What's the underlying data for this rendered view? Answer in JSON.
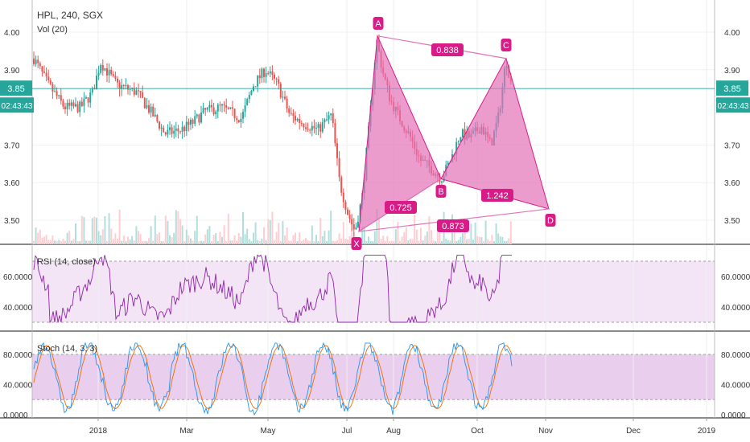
{
  "legend": {
    "symbol": "HPL, 240, SGX",
    "volume": "Vol (20)",
    "rsi": "RSI (14, close)",
    "stoch": "Stoch (14, 3, 3)"
  },
  "price_badges": {
    "price": "3.85",
    "countdown": "02:43:43"
  },
  "colors": {
    "up": "#26a69a",
    "down": "#ef5350",
    "pattern": "#d81b87",
    "pattern_fill": "#e272b8",
    "rsi_line": "#8e24aa",
    "rsi_band": "#f3e5f5",
    "stoch_band": "#e1bee7",
    "stoch_k": "#2196f3",
    "stoch_d": "#ef6c00",
    "badge": "#26a69a"
  },
  "chart_data": [
    {
      "type": "candlestick",
      "x_ticks": [
        "2018",
        "Mar",
        "May",
        "Jul",
        "Aug",
        "Oct",
        "Nov",
        "Dec",
        "2019"
      ],
      "y_ticks": [
        "4.00",
        "3.90",
        "3.70",
        "3.60",
        "3.50"
      ],
      "ylim": [
        3.43,
        4.06
      ],
      "last_price": 3.85,
      "harmonic_pattern": {
        "points": [
          {
            "label": "X",
            "price": 3.47
          },
          {
            "label": "A",
            "price": 3.99
          },
          {
            "label": "B",
            "price": 3.61
          },
          {
            "label": "C",
            "price": 3.93
          },
          {
            "label": "D",
            "price": 3.53
          }
        ],
        "ratios": [
          "0.838",
          "0.725",
          "1.242",
          "0.873"
        ]
      }
    },
    {
      "type": "line",
      "name": "RSI (14, close)",
      "y_ticks": [
        "60.0000",
        "40.0000"
      ],
      "ylim": [
        26,
        76
      ],
      "band": [
        30,
        70
      ]
    },
    {
      "type": "line",
      "name": "Stoch (14, 3, 3)",
      "y_ticks": [
        "80.0000",
        "40.0000",
        "0.0000"
      ],
      "ylim": [
        -5,
        100
      ],
      "band": [
        20,
        80
      ]
    }
  ]
}
